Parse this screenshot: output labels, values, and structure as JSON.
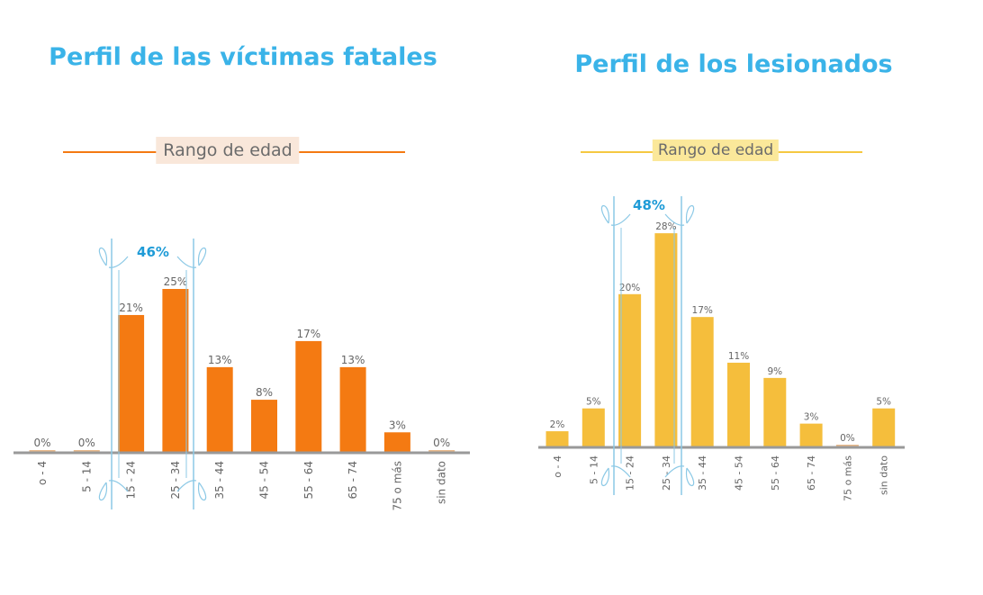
{
  "colors": {
    "title": "#3ab3e8",
    "fatal_bar": "#f47a12",
    "injured_bar": "#f5be3c",
    "bracket": "#8cc9e6",
    "bracket_text": "#1e9bd7",
    "axis": "#999999",
    "label": "#666666"
  },
  "chart_data": [
    {
      "type": "bar",
      "title": "Perfil de las víctimas fatales",
      "subtitle": "Rango de edad",
      "categories": [
        "o - 4",
        "5 - 14",
        "15 - 24",
        "25 - 34",
        "35 - 44",
        "45 - 54",
        "55 - 64",
        "65 - 74",
        "75 o más",
        "sin dato"
      ],
      "values": [
        0,
        0,
        21,
        25,
        13,
        8,
        17,
        13,
        3,
        0
      ],
      "data_labels": [
        "0%",
        "0%",
        "21%",
        "25%",
        "13%",
        "8%",
        "17%",
        "13%",
        "3%",
        "0%"
      ],
      "unit": "%",
      "highlight": {
        "categories": [
          "15 - 24",
          "25 - 34"
        ],
        "label": "46%"
      },
      "grid": false
    },
    {
      "type": "bar",
      "title": "Perfil de los lesionados",
      "subtitle": "Rango de edad",
      "categories": [
        "o - 4",
        "5 - 14",
        "15 - 24",
        "25 - 34",
        "35 - 44",
        "45 - 54",
        "55 - 64",
        "65 - 74",
        "75 o más",
        "sin dato"
      ],
      "values": [
        2,
        5,
        20,
        28,
        17,
        11,
        9,
        3,
        0,
        5
      ],
      "data_labels": [
        "2%",
        "5%",
        "20%",
        "28%",
        "17%",
        "11%",
        "9%",
        "3%",
        "0%",
        "5%"
      ],
      "unit": "%",
      "highlight": {
        "categories": [
          "15 - 24",
          "25 - 34"
        ],
        "label": "48%"
      },
      "grid": false
    }
  ]
}
